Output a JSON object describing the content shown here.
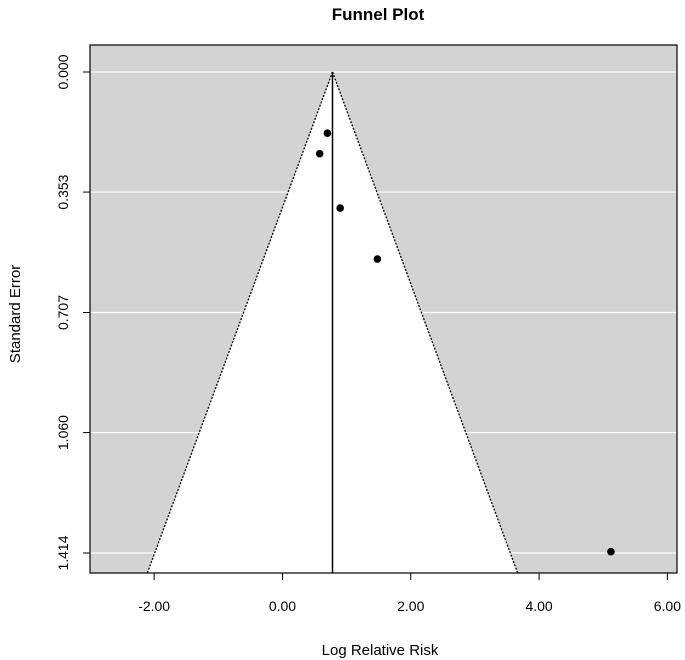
{
  "chart_data": {
    "type": "scatter",
    "title": "Funnel Plot",
    "xlabel": "Log Relative Risk",
    "ylabel": "Standard Error",
    "xlim": [
      -3.0,
      6.15
    ],
    "ylim": [
      1.414,
      0.0
    ],
    "y_reversed": true,
    "x_ticks": [
      "-2.00",
      "0.00",
      "2.00",
      "4.00",
      "6.00"
    ],
    "x_tick_values": [
      -2,
      0,
      2,
      4,
      6
    ],
    "y_ticks": [
      "0.000",
      "0.353",
      "0.707",
      "1.060",
      "1.414"
    ],
    "y_tick_values": [
      0.0,
      0.353,
      0.707,
      1.06,
      1.414
    ],
    "points": [
      {
        "x": 0.7,
        "y": 0.18
      },
      {
        "x": 0.58,
        "y": 0.24
      },
      {
        "x": 0.9,
        "y": 0.4
      },
      {
        "x": 1.48,
        "y": 0.55
      },
      {
        "x": 5.12,
        "y": 1.41
      }
    ],
    "pooled_estimate": 0.78,
    "funnel_multiplier": 1.96,
    "background_color": "#d3d3d3",
    "funnel_fill": "#ffffff",
    "gridline_color": "#ffffff",
    "grid": true
  }
}
